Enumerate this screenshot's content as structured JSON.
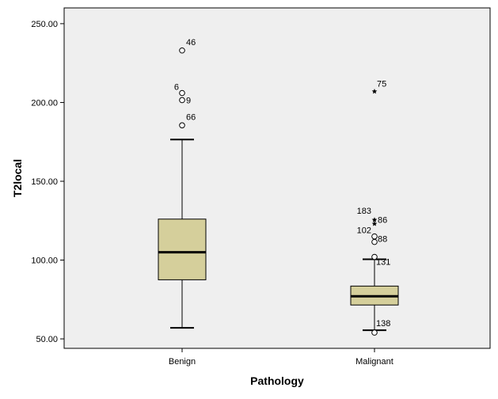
{
  "chart_data": {
    "type": "boxplot",
    "xlabel": "Pathology",
    "ylabel": "T2local",
    "categories": [
      "Benign",
      "Malignant"
    ],
    "ylim": [
      44,
      260
    ],
    "yticks": [
      50,
      100,
      150,
      200,
      250
    ],
    "ytick_labels": [
      "50.00",
      "100.00",
      "150.00",
      "200.00",
      "250.00"
    ],
    "grid": false,
    "box_fill": "#d5cf9b",
    "plot_background": "#efefef",
    "boxes": [
      {
        "category": "Benign",
        "whisker_low": 57,
        "q1": 87.5,
        "median": 105,
        "q3": 126,
        "whisker_high": 176.5,
        "outliers": [
          {
            "label": "46",
            "value": 233,
            "marker": "circle"
          },
          {
            "label": "6",
            "value": 206,
            "marker": "circle"
          },
          {
            "label": "9",
            "value": 201.5,
            "marker": "circle"
          },
          {
            "label": "66",
            "value": 185.5,
            "marker": "circle"
          }
        ]
      },
      {
        "category": "Malignant",
        "whisker_low": 55.5,
        "q1": 71.5,
        "median": 77,
        "q3": 83.5,
        "whisker_high": 100.5,
        "outliers": [
          {
            "label": "75",
            "value": 207,
            "marker": "star"
          },
          {
            "label": "183",
            "value": 125.5,
            "marker": "star"
          },
          {
            "label": "86",
            "value": 123,
            "marker": "star"
          },
          {
            "label": "102",
            "value": 115,
            "marker": "circle"
          },
          {
            "label": "88",
            "value": 111.5,
            "marker": "circle"
          },
          {
            "label": "131",
            "value": 102,
            "marker": "circle"
          },
          {
            "label": "138",
            "value": 54,
            "marker": "circle"
          }
        ]
      }
    ]
  }
}
